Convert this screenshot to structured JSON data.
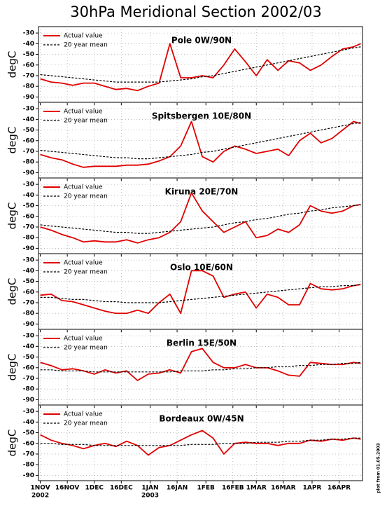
{
  "title": "30hPa Meridional Section 2002/03",
  "side_note": "plot from 01.05.2003",
  "chart_data": [
    {
      "type": "line",
      "title": "Pole 0W/90N",
      "ylabel": "degC",
      "grid": true,
      "legend": "upper left",
      "x": [
        0,
        6,
        12,
        18,
        24,
        30,
        36,
        42,
        48,
        54,
        60,
        66,
        72,
        78,
        84,
        90,
        96,
        102,
        108,
        114,
        120,
        126,
        132,
        138,
        144,
        150,
        156,
        162,
        168,
        174,
        178
      ],
      "xlim": [
        -1,
        179
      ],
      "ylim": [
        -95,
        -24
      ],
      "yticks": [
        -30,
        -40,
        -50,
        -60,
        -70,
        -80,
        -90
      ],
      "xticks": [
        0,
        15,
        30,
        45,
        61,
        76,
        92,
        107,
        120,
        135,
        151,
        166
      ],
      "series": [
        {
          "name": "Actual value",
          "color": "#e00000",
          "style": "solid",
          "values": [
            -73,
            -76,
            -77,
            -79,
            -77,
            -77,
            -80,
            -83,
            -82,
            -84,
            -80,
            -77,
            -40,
            -72,
            -72,
            -70,
            -72,
            -60,
            -45,
            -57,
            -70,
            -55,
            -65,
            -56,
            -58,
            -65,
            -60,
            -52,
            -45,
            -43,
            -40
          ]
        },
        {
          "name": "20 year mean",
          "color": "#000000",
          "style": "dashed",
          "values": [
            -69,
            -70,
            -71,
            -72,
            -73,
            -74,
            -75,
            -76,
            -76,
            -76,
            -76,
            -76,
            -75,
            -74,
            -73,
            -71,
            -70,
            -68,
            -66,
            -64,
            -62,
            -60,
            -58,
            -56,
            -54,
            -52,
            -50,
            -48,
            -46,
            -44,
            -43
          ]
        }
      ]
    },
    {
      "type": "line",
      "title": "Spitsbergen 10E/80N",
      "ylabel": "degC",
      "grid": true,
      "legend": "upper left",
      "x": [
        0,
        6,
        12,
        18,
        24,
        30,
        36,
        42,
        48,
        54,
        60,
        66,
        72,
        78,
        84,
        90,
        96,
        102,
        108,
        114,
        120,
        126,
        132,
        138,
        144,
        150,
        156,
        162,
        168,
        174,
        178
      ],
      "xlim": [
        -1,
        179
      ],
      "ylim": [
        -95,
        -24
      ],
      "yticks": [
        -30,
        -40,
        -50,
        -60,
        -70,
        -80,
        -90
      ],
      "xticks": [
        0,
        15,
        30,
        45,
        61,
        76,
        92,
        107,
        120,
        135,
        151,
        166
      ],
      "series": [
        {
          "name": "Actual value",
          "color": "#e00000",
          "style": "solid",
          "values": [
            -73,
            -76,
            -78,
            -82,
            -85,
            -84,
            -84,
            -84,
            -83,
            -83,
            -82,
            -79,
            -75,
            -65,
            -42,
            -75,
            -80,
            -70,
            -65,
            -68,
            -72,
            -70,
            -68,
            -74,
            -60,
            -53,
            -62,
            -58,
            -50,
            -42,
            -44
          ]
        },
        {
          "name": "20 year mean",
          "color": "#000000",
          "style": "dashed",
          "values": [
            -69,
            -70,
            -71,
            -72,
            -73,
            -74,
            -75,
            -76,
            -76,
            -77,
            -77,
            -76,
            -75,
            -74,
            -73,
            -71,
            -70,
            -68,
            -66,
            -64,
            -62,
            -60,
            -58,
            -56,
            -54,
            -52,
            -50,
            -48,
            -46,
            -44,
            -43
          ]
        }
      ]
    },
    {
      "type": "line",
      "title": "Kiruna 20E/70N",
      "ylabel": "degC",
      "grid": true,
      "legend": "upper left",
      "x": [
        0,
        6,
        12,
        18,
        24,
        30,
        36,
        42,
        48,
        54,
        60,
        66,
        72,
        78,
        84,
        90,
        96,
        102,
        108,
        114,
        120,
        126,
        132,
        138,
        144,
        150,
        156,
        162,
        168,
        174,
        178
      ],
      "xlim": [
        -1,
        179
      ],
      "ylim": [
        -95,
        -24
      ],
      "yticks": [
        -30,
        -40,
        -50,
        -60,
        -70,
        -80,
        -90
      ],
      "xticks": [
        0,
        15,
        30,
        45,
        61,
        76,
        92,
        107,
        120,
        135,
        151,
        166
      ],
      "series": [
        {
          "name": "Actual value",
          "color": "#e00000",
          "style": "solid",
          "values": [
            -70,
            -73,
            -77,
            -80,
            -84,
            -83,
            -84,
            -84,
            -82,
            -85,
            -82,
            -80,
            -75,
            -65,
            -38,
            -55,
            -65,
            -75,
            -70,
            -65,
            -80,
            -78,
            -72,
            -75,
            -68,
            -50,
            -55,
            -57,
            -55,
            -50,
            -49
          ]
        },
        {
          "name": "20 year mean",
          "color": "#000000",
          "style": "dashed",
          "values": [
            -68,
            -69,
            -70,
            -71,
            -72,
            -73,
            -74,
            -75,
            -75,
            -76,
            -76,
            -75,
            -74,
            -73,
            -72,
            -71,
            -70,
            -68,
            -66,
            -65,
            -63,
            -62,
            -60,
            -58,
            -57,
            -55,
            -54,
            -52,
            -51,
            -50,
            -49
          ]
        }
      ]
    },
    {
      "type": "line",
      "title": "Oslo 10E/60N",
      "ylabel": "degC",
      "grid": true,
      "legend": "upper left",
      "x": [
        0,
        6,
        12,
        18,
        24,
        30,
        36,
        42,
        48,
        54,
        60,
        66,
        72,
        78,
        84,
        90,
        96,
        102,
        108,
        114,
        120,
        126,
        132,
        138,
        144,
        150,
        156,
        162,
        168,
        174,
        178
      ],
      "xlim": [
        -1,
        179
      ],
      "ylim": [
        -95,
        -24
      ],
      "yticks": [
        -30,
        -40,
        -50,
        -60,
        -70,
        -80,
        -90
      ],
      "xticks": [
        0,
        15,
        30,
        45,
        61,
        76,
        92,
        107,
        120,
        135,
        151,
        166
      ],
      "series": [
        {
          "name": "Actual value",
          "color": "#e00000",
          "style": "solid",
          "values": [
            -63,
            -62,
            -68,
            -69,
            -72,
            -75,
            -78,
            -80,
            -80,
            -77,
            -80,
            -70,
            -62,
            -80,
            -40,
            -40,
            -45,
            -65,
            -62,
            -60,
            -75,
            -62,
            -65,
            -72,
            -72,
            -52,
            -57,
            -58,
            -57,
            -54,
            -53
          ]
        },
        {
          "name": "20 year mean",
          "color": "#000000",
          "style": "dashed",
          "values": [
            -65,
            -65,
            -66,
            -67,
            -67,
            -68,
            -69,
            -69,
            -70,
            -70,
            -70,
            -70,
            -69,
            -68,
            -67,
            -66,
            -65,
            -64,
            -63,
            -62,
            -61,
            -60,
            -59,
            -58,
            -57,
            -56,
            -55,
            -55,
            -54,
            -54,
            -53
          ]
        }
      ]
    },
    {
      "type": "line",
      "title": "Berlin 15E/50N",
      "ylabel": "degC",
      "grid": true,
      "legend": "upper left",
      "x": [
        0,
        6,
        12,
        18,
        24,
        30,
        36,
        42,
        48,
        54,
        60,
        66,
        72,
        78,
        84,
        90,
        96,
        102,
        108,
        114,
        120,
        126,
        132,
        138,
        144,
        150,
        156,
        162,
        168,
        174,
        178
      ],
      "xlim": [
        -1,
        179
      ],
      "ylim": [
        -95,
        -24
      ],
      "yticks": [
        -30,
        -40,
        -50,
        -60,
        -70,
        -80,
        -90
      ],
      "xticks": [
        0,
        15,
        30,
        45,
        61,
        76,
        92,
        107,
        120,
        135,
        151,
        166
      ],
      "series": [
        {
          "name": "Actual value",
          "color": "#e00000",
          "style": "solid",
          "values": [
            -55,
            -58,
            -62,
            -61,
            -63,
            -66,
            -62,
            -65,
            -63,
            -72,
            -66,
            -65,
            -62,
            -65,
            -45,
            -42,
            -55,
            -60,
            -60,
            -57,
            -60,
            -60,
            -63,
            -67,
            -68,
            -55,
            -56,
            -57,
            -57,
            -55,
            -56
          ]
        },
        {
          "name": "20 year mean",
          "color": "#000000",
          "style": "dashed",
          "values": [
            -62,
            -62,
            -63,
            -63,
            -63,
            -64,
            -64,
            -64,
            -64,
            -64,
            -64,
            -64,
            -64,
            -63,
            -63,
            -63,
            -62,
            -62,
            -61,
            -61,
            -60,
            -60,
            -59,
            -59,
            -58,
            -58,
            -57,
            -57,
            -56,
            -56,
            -55
          ]
        }
      ]
    },
    {
      "type": "line",
      "title": "Bordeaux 0W/45N",
      "ylabel": "degC",
      "grid": true,
      "legend": "upper left",
      "x": [
        0,
        6,
        12,
        18,
        24,
        30,
        36,
        42,
        48,
        54,
        60,
        66,
        72,
        78,
        84,
        90,
        96,
        102,
        108,
        114,
        120,
        126,
        132,
        138,
        144,
        150,
        156,
        162,
        168,
        174,
        178
      ],
      "xlim": [
        -1,
        179
      ],
      "ylim": [
        -95,
        -24
      ],
      "yticks": [
        -30,
        -40,
        -50,
        -60,
        -70,
        -80,
        -90
      ],
      "xticks": [
        {
          "value": 0,
          "label": "1NOV"
        },
        {
          "value": 15,
          "label": "16NOV"
        },
        {
          "value": 30,
          "label": "1DEC"
        },
        {
          "value": 45,
          "label": "16DEC"
        },
        {
          "value": 61,
          "label": "1JAN"
        },
        {
          "value": 76,
          "label": "16JAN"
        },
        {
          "value": 92,
          "label": "1FEB"
        },
        {
          "value": 107,
          "label": "16FEB"
        },
        {
          "value": 120,
          "label": "1MAR"
        },
        {
          "value": 135,
          "label": "16MAR"
        },
        {
          "value": 151,
          "label": "1APR"
        },
        {
          "value": 166,
          "label": "16APR"
        }
      ],
      "x_year_labels": [
        {
          "value": 0,
          "label": "2002"
        },
        {
          "value": 61,
          "label": "2003"
        }
      ],
      "series": [
        {
          "name": "Actual value",
          "color": "#e00000",
          "style": "solid",
          "values": [
            -52,
            -57,
            -60,
            -62,
            -65,
            -62,
            -60,
            -63,
            -58,
            -62,
            -71,
            -64,
            -62,
            -57,
            -52,
            -48,
            -55,
            -70,
            -60,
            -59,
            -60,
            -60,
            -62,
            -60,
            -60,
            -57,
            -58,
            -56,
            -57,
            -55,
            -56
          ]
        },
        {
          "name": "20 year mean",
          "color": "#000000",
          "style": "dashed",
          "values": [
            -60,
            -60,
            -61,
            -61,
            -61,
            -62,
            -62,
            -62,
            -62,
            -62,
            -62,
            -62,
            -62,
            -62,
            -61,
            -61,
            -61,
            -60,
            -60,
            -60,
            -59,
            -59,
            -59,
            -58,
            -58,
            -57,
            -57,
            -56,
            -56,
            -55,
            -55
          ]
        }
      ]
    }
  ]
}
